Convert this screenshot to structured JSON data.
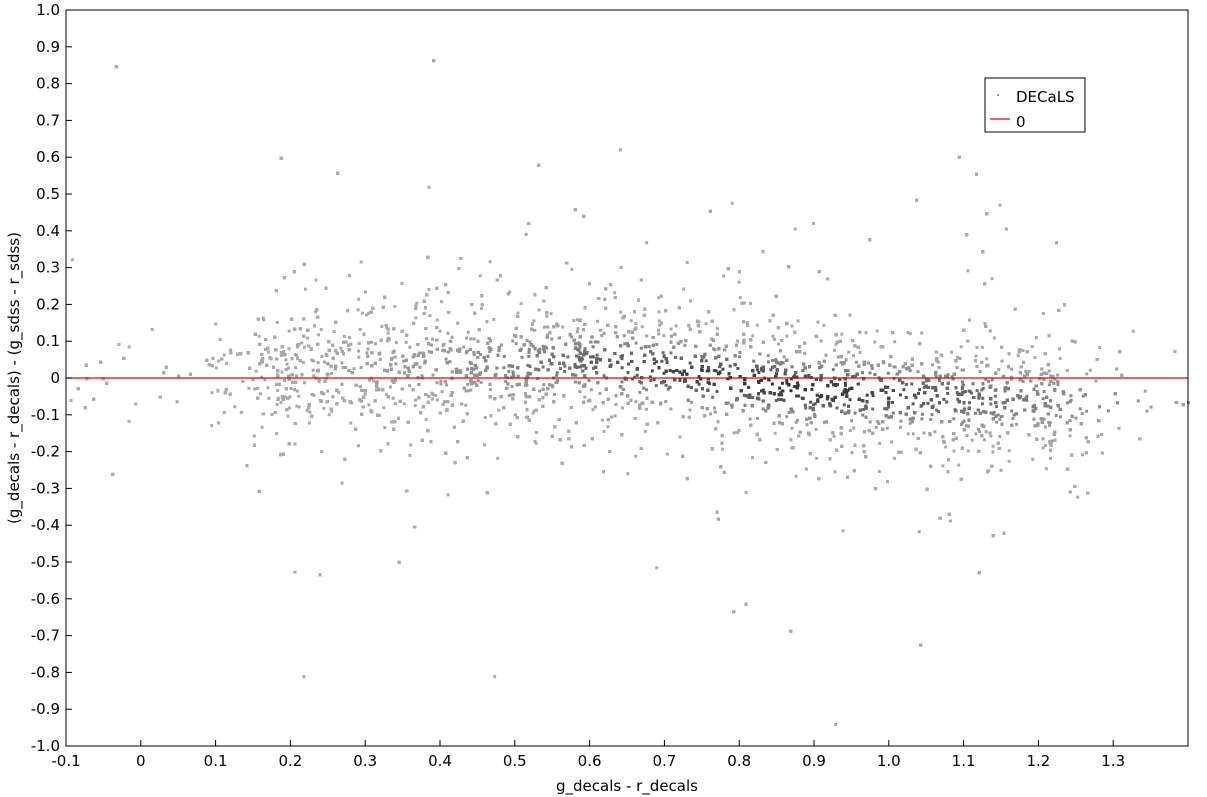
{
  "chart_data": {
    "type": "scatter",
    "title": "",
    "xlabel": "g_decals - r_decals",
    "ylabel": "(g_decals - r_decals) - (g_sdss - r_sdss)",
    "xlim": [
      -0.1,
      1.4
    ],
    "ylim": [
      -1.0,
      1.0
    ],
    "x_ticks": [
      "-0.1",
      "0",
      "0.1",
      "0.2",
      "0.3",
      "0.4",
      "0.5",
      "0.6",
      "0.7",
      "0.8",
      "0.9",
      "1.0",
      "1.1",
      "1.2",
      "1.3"
    ],
    "x_tick_values": [
      -0.1,
      0,
      0.1,
      0.2,
      0.3,
      0.4,
      0.5,
      0.6,
      0.7,
      0.8,
      0.9,
      1.0,
      1.1,
      1.2,
      1.3
    ],
    "y_ticks": [
      "1.0",
      "0.9",
      "0.8",
      "0.7",
      "0.6",
      "0.5",
      "0.4",
      "0.3",
      "0.2",
      "0.1",
      "0",
      "-0.1",
      "-0.2",
      "-0.3",
      "-0.4",
      "-0.5",
      "-0.6",
      "-0.7",
      "-0.8",
      "-0.9",
      "-1.0"
    ],
    "y_tick_values": [
      1.0,
      0.9,
      0.8,
      0.7,
      0.6,
      0.5,
      0.4,
      0.3,
      0.2,
      0.1,
      0,
      -0.1,
      -0.2,
      -0.3,
      -0.4,
      -0.5,
      -0.6,
      -0.7,
      -0.8,
      -0.9,
      -1.0
    ],
    "grid": false,
    "legend_position": "top-right",
    "series": [
      {
        "name": "DECaLS",
        "kind": "scatter-density",
        "color": "#808080",
        "core_color": "#2a2a2a",
        "trend": [
          [
            0.0,
            0.0
          ],
          [
            0.3,
            0.03
          ],
          [
            0.6,
            0.05
          ],
          [
            0.9,
            -0.03
          ],
          [
            1.2,
            -0.06
          ]
        ],
        "x_range": [
          -0.1,
          1.4
        ],
        "density_peak_x": 0.85
      },
      {
        "name": "0",
        "kind": "hline",
        "y": 0,
        "color": "#e8000b"
      }
    ],
    "legend": [
      {
        "label": "DECaLS",
        "symbol": "point",
        "color": "#a0a0a0"
      },
      {
        "label": "0",
        "symbol": "line",
        "color": "#e8000b"
      }
    ]
  }
}
